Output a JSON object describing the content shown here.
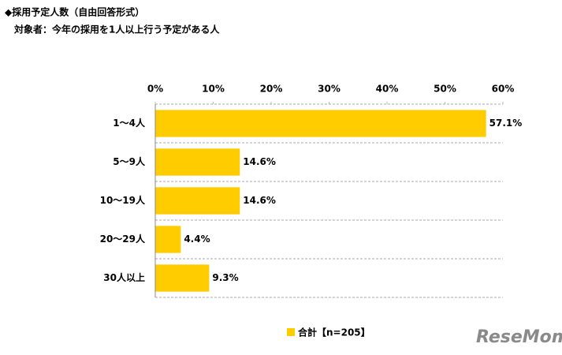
{
  "chart_data": {
    "type": "bar",
    "orientation": "horizontal",
    "title": "◆採用予定人数（自由回答形式）",
    "subtitle": "対象者：今年の採用を1人以上行う予定がある人",
    "categories": [
      "1～4人",
      "5～9人",
      "10～19人",
      "20～29人",
      "30人以上"
    ],
    "series": [
      {
        "name": "合計【n=205】",
        "color": "#ffcc00",
        "values": [
          57.1,
          14.6,
          14.6,
          4.4,
          9.3
        ],
        "value_labels": [
          "57.1%",
          "14.6%",
          "14.6%",
          "4.4%",
          "9.3%"
        ]
      }
    ],
    "xlim": [
      0,
      60
    ],
    "xticks": [
      {
        "value": 0,
        "label": "0%"
      },
      {
        "value": 10,
        "label": "10%"
      },
      {
        "value": 20,
        "label": "20%"
      },
      {
        "value": 30,
        "label": "30%"
      },
      {
        "value": 40,
        "label": "40%"
      },
      {
        "value": 50,
        "label": "50%"
      },
      {
        "value": 60,
        "label": "60%"
      }
    ],
    "watermark": "ReseMom"
  }
}
